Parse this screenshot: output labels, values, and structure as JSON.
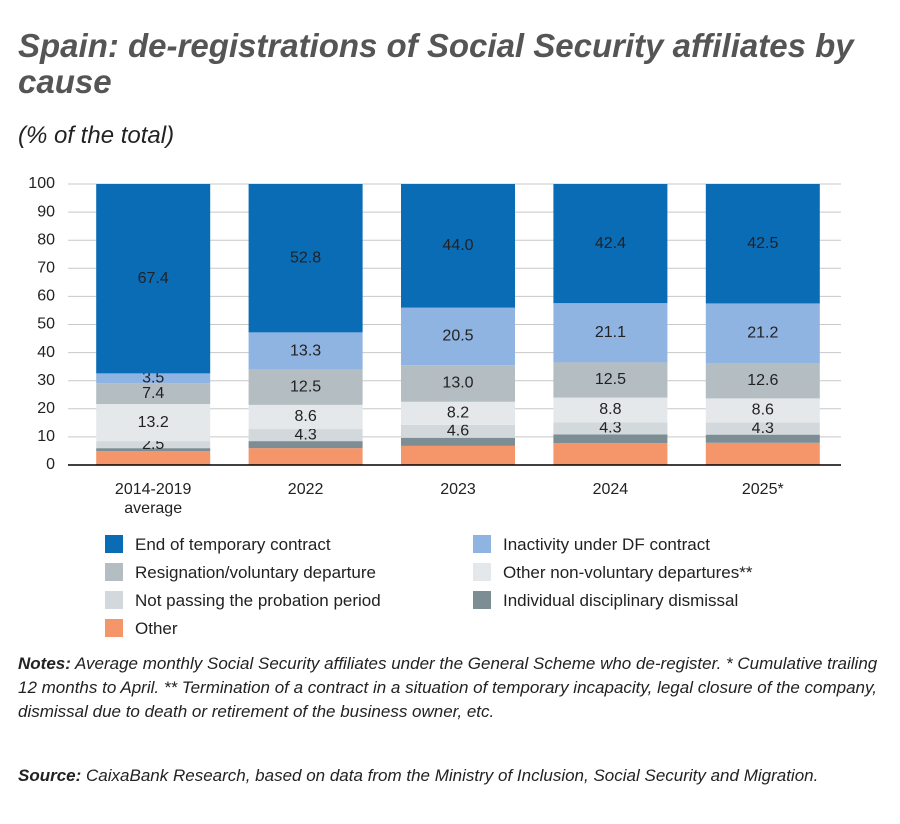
{
  "chart_data": {
    "type": "stacked-bar",
    "title": "Spain: de-registrations of Social Security affiliates by cause",
    "subtitle": "(% of the total)",
    "categories": [
      "2014-2019 average",
      "2022",
      "2023",
      "2024",
      "2025*"
    ],
    "ylim": [
      0,
      100
    ],
    "yticks": [
      0,
      10,
      20,
      30,
      40,
      50,
      60,
      70,
      80,
      90,
      100
    ],
    "grid": true,
    "series": [
      {
        "name": "Other",
        "color": "#f4956a",
        "values": [
          4.9,
          6.0,
          6.8,
          7.8,
          7.9
        ]
      },
      {
        "name": "Individual disciplinary dismissal",
        "color": "#7c8d94",
        "values": [
          1.1,
          2.5,
          2.9,
          3.1,
          2.9
        ]
      },
      {
        "name": "Not passing the probation period",
        "color": "#d2d8dc",
        "values": [
          2.5,
          4.3,
          4.6,
          4.3,
          4.3
        ],
        "value_labels": [
          "2.5",
          "4.3",
          "4.6",
          "4.3",
          "4.3"
        ]
      },
      {
        "name": "Other non-voluntary departures**",
        "color": "#e4e8eb",
        "values": [
          13.2,
          8.6,
          8.2,
          8.8,
          8.6
        ],
        "value_labels": [
          "13.2",
          "8.6",
          "8.2",
          "8.8",
          "8.6"
        ]
      },
      {
        "name": "Resignation/voluntary departure",
        "color": "#b4bdc1",
        "values": [
          7.4,
          12.5,
          13.0,
          12.5,
          12.6
        ],
        "value_labels": [
          "7.4",
          "12.5",
          "13.0",
          "12.5",
          "12.6"
        ]
      },
      {
        "name": "Inactivity under DF contract",
        "color": "#8fb4e2",
        "values": [
          3.5,
          13.3,
          20.5,
          21.1,
          21.2
        ],
        "value_labels": [
          "3.5",
          "13.3",
          "20.5",
          "21.1",
          "21.2"
        ]
      },
      {
        "name": "End of temporary contract",
        "color": "#0b6cb6",
        "values": [
          67.4,
          52.8,
          44.0,
          42.4,
          42.5
        ],
        "value_labels": [
          "67.4",
          "52.8",
          "44.0",
          "42.4",
          "42.5"
        ]
      }
    ],
    "legend_order": [
      6,
      5,
      4,
      3,
      2,
      1,
      0
    ]
  },
  "notes": {
    "label": "Notes:",
    "text": "Average monthly Social Security affiliates under the General Scheme who de-register. * Cumulative trailing 12 months to April. ** Termination of a contract in a situation of temporary incapacity, legal closure of the company, dismissal due to death or retirement of the business owner, etc."
  },
  "source": {
    "label": "Source:",
    "text": "CaixaBank Research, based on data from the Ministry of Inclusion, Social Security and Migration."
  }
}
